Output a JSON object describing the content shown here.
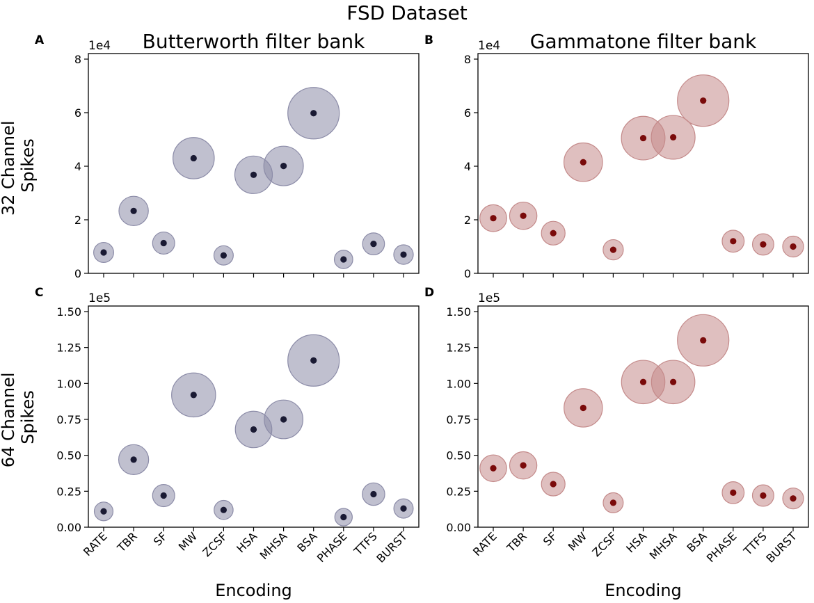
{
  "figure": {
    "title": "FSD Dataset",
    "row_labels": [
      [
        "32 Channel",
        "Spikes"
      ],
      [
        "64 Channel",
        "Spikes"
      ]
    ],
    "colors": {
      "butterworth_fill": "#8c8ca8",
      "butterworth_dot": "#1a1a33",
      "gammatone_fill": "#c48a8a",
      "gammatone_dot": "#7a0a0a"
    }
  },
  "chart_data": [
    {
      "type": "scatter",
      "panel": "A",
      "title": "Butterworth filter bank",
      "multiplier": "1e4",
      "xlabel": "",
      "ylabel": "",
      "categories": [
        "RATE",
        "TBR",
        "SF",
        "MW",
        "ZCSF",
        "HSA",
        "MHSA",
        "BSA",
        "PHASE",
        "TTFS",
        "BURST"
      ],
      "values": [
        0.78,
        2.33,
        1.13,
        4.3,
        0.67,
        3.68,
        4.01,
        5.98,
        0.52,
        1.1,
        0.7
      ],
      "ylim": [
        0,
        8
      ],
      "yticks": [
        0,
        2,
        4,
        6,
        8
      ],
      "ytick_labels": [
        "0",
        "2",
        "4",
        "6",
        "8"
      ],
      "series_color": "butterworth"
    },
    {
      "type": "scatter",
      "panel": "B",
      "title": "Gammatone filter bank",
      "multiplier": "1e4",
      "xlabel": "",
      "ylabel": "",
      "categories": [
        "RATE",
        "TBR",
        "SF",
        "MW",
        "ZCSF",
        "HSA",
        "MHSA",
        "BSA",
        "PHASE",
        "TTFS",
        "BURST"
      ],
      "values": [
        2.06,
        2.15,
        1.5,
        4.15,
        0.88,
        5.05,
        5.08,
        6.45,
        1.2,
        1.08,
        1.0
      ],
      "ylim": [
        0,
        8
      ],
      "yticks": [
        0,
        2,
        4,
        6,
        8
      ],
      "ytick_labels": [
        "0",
        "2",
        "4",
        "6",
        "8"
      ],
      "series_color": "gammatone"
    },
    {
      "type": "scatter",
      "panel": "C",
      "title": "",
      "multiplier": "1e5",
      "xlabel": "Encoding",
      "ylabel": "",
      "categories": [
        "RATE",
        "TBR",
        "SF",
        "MW",
        "ZCSF",
        "HSA",
        "MHSA",
        "BSA",
        "PHASE",
        "TTFS",
        "BURST"
      ],
      "values": [
        0.11,
        0.47,
        0.22,
        0.92,
        0.12,
        0.68,
        0.75,
        1.16,
        0.07,
        0.23,
        0.13
      ],
      "ylim": [
        0,
        1.5
      ],
      "yticks": [
        0,
        0.25,
        0.5,
        0.75,
        1.0,
        1.25,
        1.5
      ],
      "ytick_labels": [
        "0.00",
        "0.25",
        "0.50",
        "0.75",
        "1.00",
        "1.25",
        "1.50"
      ],
      "series_color": "butterworth"
    },
    {
      "type": "scatter",
      "panel": "D",
      "title": "",
      "multiplier": "1e5",
      "xlabel": "Encoding",
      "ylabel": "",
      "categories": [
        "RATE",
        "TBR",
        "SF",
        "MW",
        "ZCSF",
        "HSA",
        "MHSA",
        "BSA",
        "PHASE",
        "TTFS",
        "BURST"
      ],
      "values": [
        0.41,
        0.43,
        0.3,
        0.83,
        0.17,
        1.01,
        1.01,
        1.3,
        0.24,
        0.22,
        0.2
      ],
      "ylim": [
        0,
        1.5
      ],
      "yticks": [
        0,
        0.25,
        0.5,
        0.75,
        1.0,
        1.25,
        1.5
      ],
      "ytick_labels": [
        "0.00",
        "0.25",
        "0.50",
        "0.75",
        "1.00",
        "1.25",
        "1.50"
      ],
      "series_color": "gammatone"
    }
  ]
}
